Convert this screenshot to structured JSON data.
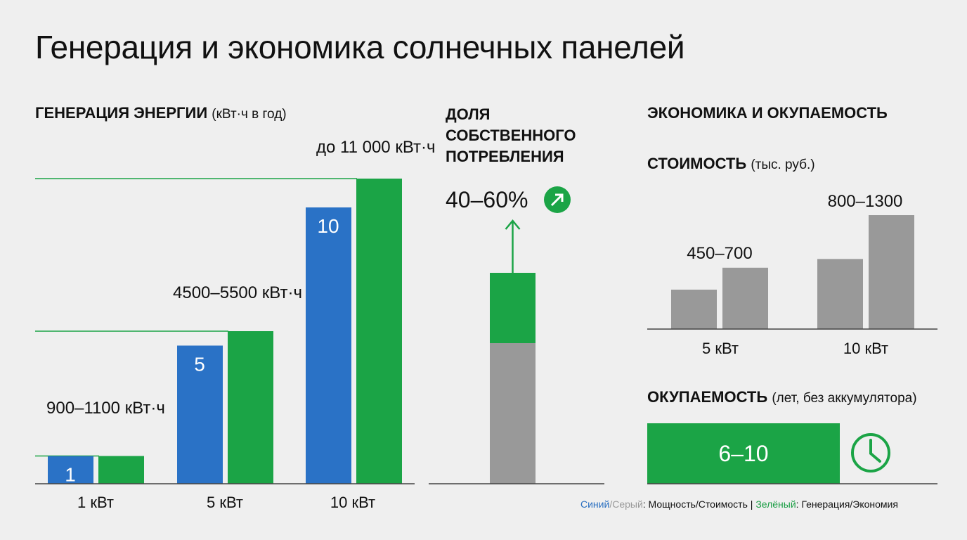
{
  "title": "Генерация и экономика солнечных панелей",
  "colors": {
    "blue": "#2a72c6",
    "green": "#1ba446",
    "grey": "#999999",
    "axis": "#444444"
  },
  "chart_data": [
    {
      "type": "bar",
      "title": "ГЕНЕРАЦИЯ ЭНЕРГИИ",
      "unit": "(кВт·ч в год)",
      "categories": [
        "1 кВт",
        "5 кВт",
        "10 кВт"
      ],
      "ylim": [
        0,
        11000
      ],
      "series": [
        {
          "color": "blue",
          "values": [
            1,
            5,
            10
          ],
          "labels": [
            "1",
            "5",
            "10"
          ]
        },
        {
          "color": "green",
          "values": [
            1000,
            5500,
            11000
          ],
          "labels": [
            "900–1100 кВт·ч",
            "4500–5500 кВт·ч",
            "до 11 000 кВт·ч"
          ]
        }
      ]
    },
    {
      "type": "bar",
      "title": "ДОЛЯ СОБСТВЕННОГО ПОТРЕБЛЕНИЯ",
      "value_label": "40–60%",
      "stack": [
        {
          "color": "grey",
          "value": 40
        },
        {
          "color": "green",
          "value": 20
        }
      ],
      "trend_icon": "arrow-up-right-icon"
    },
    {
      "type": "bar",
      "title": "СТОИМОСТЬ",
      "section_title": "ЭКОНОМИКА И ОКУПАЕМОСТЬ",
      "unit": "(тыс. руб.)",
      "categories": [
        "5 кВт",
        "10 кВт"
      ],
      "ranges": [
        [
          450,
          700
        ],
        [
          800,
          1300
        ]
      ],
      "labels": [
        "450–700",
        "800–1300"
      ]
    },
    {
      "type": "bar",
      "title": "ОКУПАЕМОСТЬ",
      "unit": "(лет, без аккумулятора)",
      "range": [
        6,
        10
      ],
      "label": "6–10",
      "icon": "clock-icon"
    }
  ],
  "legend": {
    "blue": "Синий",
    "slash": "/",
    "grey": "Серый",
    "mid": ": Мощность/Стоимость | ",
    "green": "Зелёный",
    "end": ": Генерация/Экономия"
  }
}
